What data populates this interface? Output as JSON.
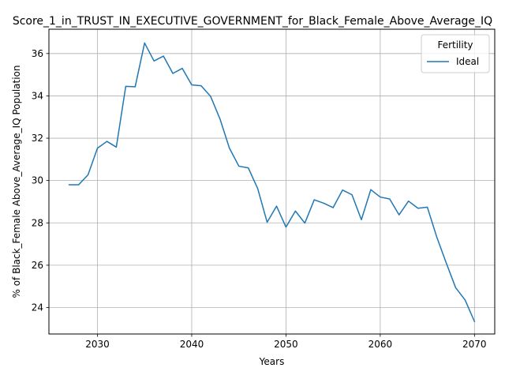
{
  "chart_data": {
    "type": "line",
    "title": "Score_1_in_TRUST_IN_EXECUTIVE_GOVERNMENT_for_Black_Female_Above_Average_IQ",
    "xlabel": "Years",
    "ylabel": "% of Black_Female Above_Average_IQ Population",
    "xlim": [
      2024.85,
      2072.15
    ],
    "ylim": [
      22.75,
      37.15
    ],
    "xticks": [
      2030,
      2040,
      2050,
      2060,
      2070
    ],
    "yticks": [
      24,
      26,
      28,
      30,
      32,
      34,
      36
    ],
    "grid": true,
    "legend": {
      "title": "Fertility",
      "placement": "top-right"
    },
    "colors": {
      "line": "#1f77b4"
    },
    "series": [
      {
        "name": "Ideal",
        "x": [
          2027,
          2028,
          2029,
          2030,
          2031,
          2032,
          2033,
          2034,
          2035,
          2036,
          2037,
          2038,
          2039,
          2040,
          2041,
          2042,
          2043,
          2044,
          2045,
          2046,
          2047,
          2048,
          2049,
          2050,
          2051,
          2052,
          2053,
          2054,
          2055,
          2056,
          2057,
          2058,
          2059,
          2060,
          2061,
          2062,
          2063,
          2064,
          2065,
          2066,
          2067,
          2068,
          2069,
          2070
        ],
        "values": [
          29.8,
          29.8,
          30.27,
          31.53,
          31.85,
          31.58,
          34.45,
          34.43,
          36.5,
          35.65,
          35.88,
          35.06,
          35.3,
          34.52,
          34.48,
          33.98,
          32.91,
          31.53,
          30.68,
          30.6,
          29.62,
          28.03,
          28.79,
          27.8,
          28.56,
          27.99,
          29.09,
          28.93,
          28.72,
          29.55,
          29.33,
          28.15,
          29.57,
          29.22,
          29.13,
          28.38,
          29.03,
          28.69,
          28.74,
          27.33,
          26.11,
          24.94,
          24.36,
          23.34
        ]
      }
    ]
  }
}
